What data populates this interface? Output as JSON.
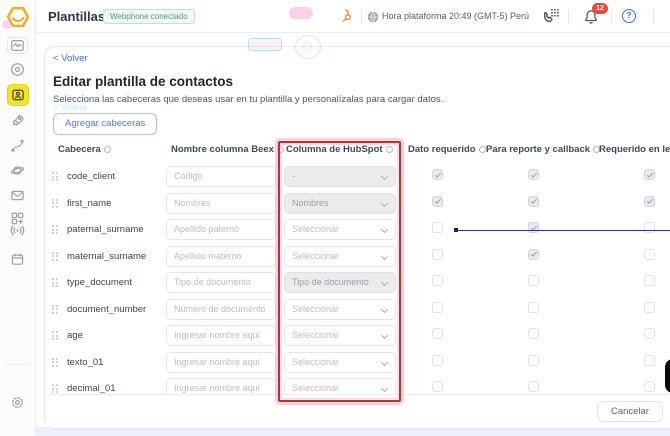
{
  "topbar": {
    "title": "Plantillas",
    "webphone_badge": "Webphone conectado",
    "platform_time": "Hora plataforma 20:49 (GMT-5) Perú",
    "notification_count": "12",
    "help_glyph": "?"
  },
  "sidebar": {
    "items": [
      "beex-logo",
      "monitor-pulse",
      "eye",
      "contacts-template",
      "rocket",
      "route-flow",
      "planet",
      "mail",
      "apps-plus",
      "broadcast",
      "calendar",
      "settings"
    ],
    "active_item": "contacts-template"
  },
  "page": {
    "back_chevron": "<",
    "back_link": "Volver",
    "title": "Editar plantilla de contactos",
    "subtitle": "Selecciona las cabeceras que deseas usar en tu plantilla y personalízalas para cargar datos.",
    "add_headers_button": "Agregar cabeceras",
    "cancel_button": "Cancelar"
  },
  "table": {
    "headers": [
      "Cabecera",
      "Nombre columna Beex",
      "Columna de HubSpot",
      "Dato requerido",
      "Para reporte y callback",
      "Requerido en leads"
    ],
    "highlighted_column": "Columna de HubSpot",
    "rows": [
      {
        "name": "code_client",
        "beex_name": "Código",
        "hubspot": "-",
        "hubspot_filled": true,
        "checks": [
          true,
          true,
          true
        ]
      },
      {
        "name": "first_name",
        "beex_name": "Nombres",
        "hubspot": "Nombres",
        "hubspot_filled": true,
        "checks": [
          true,
          true,
          true
        ]
      },
      {
        "name": "paternal_surname",
        "beex_name": "Apellido paterno",
        "hubspot": "Seleccionar",
        "hubspot_filled": false,
        "checks": [
          false,
          true,
          false
        ]
      },
      {
        "name": "maternal_surname",
        "beex_name": "Apellido materno",
        "hubspot": "Seleccionar",
        "hubspot_filled": false,
        "checks": [
          false,
          true,
          false
        ]
      },
      {
        "name": "type_document",
        "beex_name": "Tipo de documento",
        "hubspot": "Tipo de documento",
        "hubspot_filled": true,
        "checks": [
          false,
          false,
          false
        ]
      },
      {
        "name": "document_number",
        "beex_name": "Número de documento",
        "hubspot": "Seleccionar",
        "hubspot_filled": false,
        "checks": [
          false,
          false,
          false
        ]
      },
      {
        "name": "age",
        "beex_name": "Ingresar nombre aquí",
        "hubspot": "Seleccionar",
        "hubspot_filled": false,
        "checks": [
          false,
          false,
          false
        ]
      },
      {
        "name": "texto_01",
        "beex_name": "Ingresar nombre aquí",
        "hubspot": "Seleccionar",
        "hubspot_filled": false,
        "checks": [
          false,
          false,
          false
        ]
      },
      {
        "name": "decimal_01",
        "beex_name": "Ingresar nombre aquí",
        "hubspot": "Seleccionar",
        "hubspot_filled": false,
        "checks": [
          false,
          false,
          false
        ]
      }
    ]
  },
  "colors": {
    "brand_yellow": "#f2e42c",
    "accent_blue": "#5b74e8",
    "link_blue": "#4b68e1",
    "annotation_red": "#a93a2c",
    "annotation_pink": "#f6a8cd",
    "annotation_line_blue": "#30309e",
    "badge_red": "#e8493e",
    "badge_green_text": "#4d9e6e"
  }
}
